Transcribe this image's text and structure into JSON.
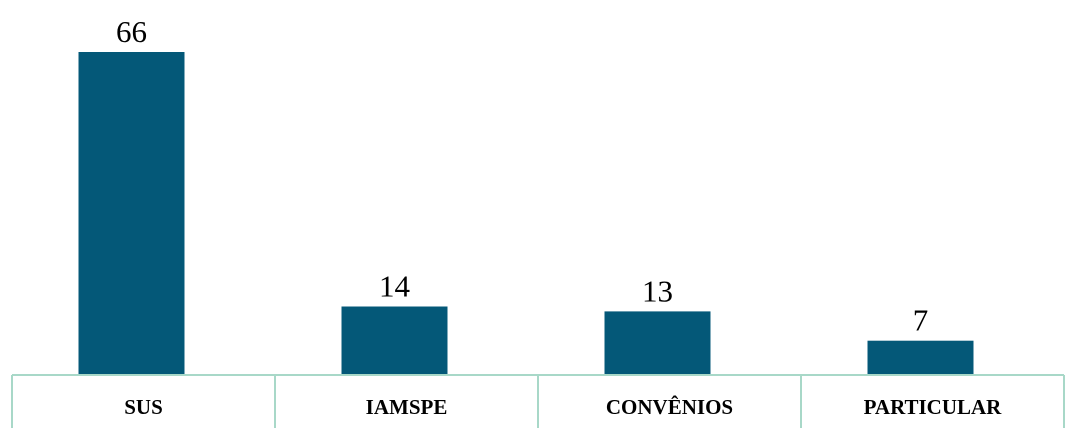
{
  "chart_data": {
    "type": "bar",
    "categories": [
      "SUS",
      "IAMSPE",
      "CONVÊNIOS",
      "PARTICULAR"
    ],
    "values": [
      66,
      14,
      13,
      7
    ],
    "data_labels": [
      "66",
      "14",
      "13",
      "7"
    ],
    "title": "",
    "xlabel": "",
    "ylabel": "",
    "ylim": [
      0,
      66
    ],
    "grid": false,
    "legend": "none",
    "colors": {
      "bar": "#045878",
      "axis_table": "#a8d8c8",
      "text": "#000000"
    }
  }
}
